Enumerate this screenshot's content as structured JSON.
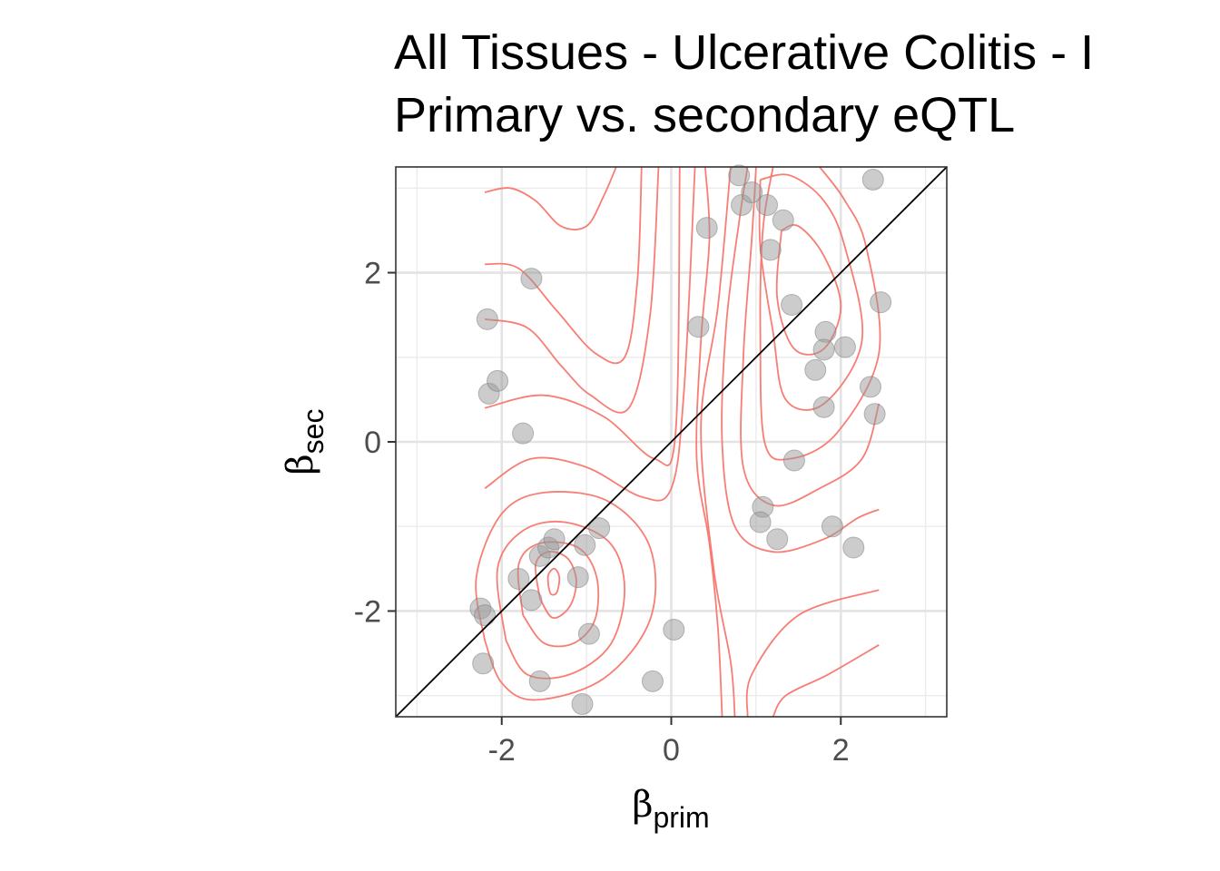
{
  "chart_data": {
    "type": "scatter",
    "title": [
      "All Tissues - Ulcerative Colitis - I",
      "Primary vs. secondary eQTL"
    ],
    "xlabel": {
      "symbol": "β",
      "sub": "prim"
    },
    "ylabel": {
      "symbol": "β",
      "sub": "sec"
    },
    "xlim": [
      -3.25,
      3.25
    ],
    "ylim": [
      -3.25,
      3.25
    ],
    "x_ticks": [
      -2,
      0,
      2
    ],
    "y_ticks": [
      -2,
      0,
      2
    ],
    "x_tick_labels": [
      "-2",
      "0",
      "2"
    ],
    "y_tick_labels": [
      "-2",
      "0",
      "2"
    ],
    "grid": true,
    "reference_line": "y = x",
    "points": {
      "color": "#999999",
      "x": [
        -2.17,
        -2.15,
        -2.05,
        -1.75,
        -1.65,
        -2.25,
        -2.2,
        -2.22,
        -1.8,
        -1.65,
        -1.55,
        -1.45,
        -1.38,
        -1.02,
        -0.85,
        -1.1,
        -0.97,
        -1.55,
        -1.05,
        -0.22,
        0.03,
        0.32,
        0.42,
        0.8,
        0.83,
        0.95,
        1.13,
        1.17,
        1.32,
        1.42,
        1.82,
        1.8,
        2.05,
        1.7,
        1.8,
        2.35,
        2.4,
        2.47,
        2.38,
        1.45,
        1.08,
        1.05,
        1.25,
        1.9,
        2.15
      ],
      "y": [
        1.45,
        0.57,
        0.72,
        0.1,
        1.93,
        -1.97,
        -2.05,
        -2.62,
        -1.62,
        -1.87,
        -1.35,
        -1.25,
        -1.15,
        -1.22,
        -1.02,
        -1.6,
        -2.27,
        -2.83,
        -3.1,
        -2.83,
        -2.22,
        1.36,
        2.53,
        3.15,
        2.8,
        2.95,
        2.8,
        2.27,
        2.62,
        1.62,
        1.3,
        1.09,
        1.12,
        0.85,
        0.41,
        0.65,
        0.33,
        1.65,
        3.1,
        -0.22,
        -0.77,
        -0.95,
        -1.15,
        -1.0,
        -1.25
      ]
    },
    "density_contours": {
      "color": "#f8766d",
      "lines": [
        [
          [
            -2.2,
            2.95
          ],
          [
            -1.9,
            3.0
          ],
          [
            -1.6,
            2.85
          ],
          [
            -1.3,
            2.55
          ],
          [
            -1.0,
            2.55
          ],
          [
            -0.8,
            2.9
          ],
          [
            -0.65,
            3.25
          ]
        ],
        [
          [
            -2.2,
            2.1
          ],
          [
            -1.8,
            2.05
          ],
          [
            -1.35,
            1.55
          ],
          [
            -0.9,
            1.05
          ],
          [
            -0.55,
            1.0
          ],
          [
            -0.4,
            1.9
          ],
          [
            -0.35,
            3.25
          ]
        ],
        [
          [
            -2.2,
            1.45
          ],
          [
            -1.7,
            1.35
          ],
          [
            -1.3,
            0.9
          ],
          [
            -0.95,
            0.55
          ],
          [
            -0.5,
            0.4
          ],
          [
            -0.25,
            1.5
          ],
          [
            -0.15,
            3.25
          ]
        ],
        [
          [
            -2.2,
            0.4
          ],
          [
            -1.5,
            0.55
          ],
          [
            -0.8,
            0.3
          ],
          [
            -0.2,
            -0.2
          ],
          [
            0.05,
            0.1
          ],
          [
            0.1,
            3.25
          ]
        ],
        [
          [
            -2.2,
            -0.55
          ],
          [
            -1.65,
            -0.2
          ],
          [
            -1.0,
            -0.3
          ],
          [
            -0.35,
            -0.65
          ],
          [
            0.0,
            -0.55
          ],
          [
            0.15,
            0.6
          ],
          [
            0.28,
            3.25
          ]
        ],
        [
          [
            -2.2,
            -2.35
          ],
          [
            -2.3,
            -1.6
          ],
          [
            -2.0,
            -0.85
          ],
          [
            -1.5,
            -0.6
          ],
          [
            -0.75,
            -0.7
          ],
          [
            -0.25,
            -1.25
          ],
          [
            -0.25,
            -2.1
          ],
          [
            -0.8,
            -2.8
          ],
          [
            -1.6,
            -3.05
          ],
          [
            -2.0,
            -2.85
          ],
          [
            -2.2,
            -2.35
          ]
        ],
        [
          [
            -1.95,
            -2.35
          ],
          [
            -2.05,
            -1.5
          ],
          [
            -1.75,
            -1.05
          ],
          [
            -1.25,
            -0.95
          ],
          [
            -0.72,
            -1.2
          ],
          [
            -0.55,
            -1.75
          ],
          [
            -0.72,
            -2.4
          ],
          [
            -1.2,
            -2.75
          ],
          [
            -1.7,
            -2.75
          ],
          [
            -1.95,
            -2.35
          ]
        ],
        [
          [
            -1.75,
            -2.05
          ],
          [
            -1.8,
            -1.45
          ],
          [
            -1.55,
            -1.2
          ],
          [
            -1.1,
            -1.25
          ],
          [
            -0.88,
            -1.6
          ],
          [
            -0.9,
            -2.1
          ],
          [
            -1.15,
            -2.38
          ],
          [
            -1.5,
            -2.38
          ],
          [
            -1.75,
            -2.05
          ]
        ],
        [
          [
            -1.55,
            -1.85
          ],
          [
            -1.6,
            -1.45
          ],
          [
            -1.45,
            -1.3
          ],
          [
            -1.22,
            -1.38
          ],
          [
            -1.12,
            -1.65
          ],
          [
            -1.2,
            -1.95
          ],
          [
            -1.4,
            -2.08
          ],
          [
            -1.55,
            -1.85
          ]
        ],
        [
          [
            -1.45,
            -1.7
          ],
          [
            -1.45,
            -1.57
          ],
          [
            -1.38,
            -1.5
          ],
          [
            -1.32,
            -1.6
          ],
          [
            -1.35,
            -1.78
          ],
          [
            -1.42,
            -1.8
          ],
          [
            -1.45,
            -1.7
          ]
        ],
        [
          [
            0.4,
            3.25
          ],
          [
            0.45,
            2.4
          ],
          [
            0.35,
            1.2
          ],
          [
            0.3,
            -0.2
          ],
          [
            0.45,
            -1.2
          ],
          [
            0.55,
            -2.2
          ],
          [
            0.6,
            -3.25
          ]
        ],
        [
          [
            0.75,
            -3.25
          ],
          [
            0.7,
            -2.6
          ],
          [
            0.5,
            -1.5
          ],
          [
            0.35,
            0.2
          ],
          [
            0.55,
            1.6
          ],
          [
            0.7,
            3.25
          ]
        ],
        [
          [
            0.9,
            -3.25
          ],
          [
            0.95,
            -2.75
          ],
          [
            1.5,
            -2.05
          ],
          [
            2.45,
            -1.75
          ]
        ],
        [
          [
            1.2,
            -3.25
          ],
          [
            1.35,
            -3.0
          ],
          [
            1.85,
            -2.75
          ],
          [
            2.45,
            -2.4
          ]
        ],
        [
          [
            0.9,
            3.25
          ],
          [
            0.8,
            2.6
          ],
          [
            0.65,
            1.4
          ],
          [
            0.6,
            0.0
          ],
          [
            0.75,
            -1.0
          ],
          [
            1.2,
            -1.3
          ],
          [
            1.8,
            -1.15
          ],
          [
            2.2,
            -0.9
          ],
          [
            2.45,
            -0.8
          ]
        ],
        [
          [
            1.0,
            3.25
          ],
          [
            0.95,
            2.4
          ],
          [
            0.85,
            1.0
          ],
          [
            0.85,
            -0.3
          ],
          [
            1.2,
            -0.75
          ],
          [
            1.75,
            -0.55
          ],
          [
            2.25,
            -0.2
          ],
          [
            2.45,
            0.45
          ]
        ],
        [
          [
            1.2,
            3.25
          ],
          [
            1.08,
            2.5
          ],
          [
            1.05,
            1.3
          ],
          [
            1.1,
            0.0
          ],
          [
            1.4,
            -0.2
          ],
          [
            1.95,
            0.1
          ],
          [
            2.45,
            1.05
          ],
          [
            2.3,
            2.3
          ],
          [
            2.05,
            2.85
          ],
          [
            1.75,
            3.25
          ]
        ],
        [
          [
            1.05,
            3.1
          ],
          [
            1.05,
            2.3
          ],
          [
            1.2,
            1.3
          ],
          [
            1.35,
            0.5
          ],
          [
            1.8,
            0.45
          ],
          [
            2.25,
            1.2
          ],
          [
            2.05,
            2.3
          ],
          [
            1.8,
            2.85
          ],
          [
            1.4,
            3.15
          ],
          [
            1.05,
            3.1
          ]
        ],
        [
          [
            1.3,
            2.5
          ],
          [
            1.25,
            1.7
          ],
          [
            1.45,
            1.1
          ],
          [
            1.8,
            1.1
          ],
          [
            2.0,
            1.6
          ],
          [
            1.8,
            2.2
          ],
          [
            1.5,
            2.55
          ],
          [
            1.3,
            2.5
          ]
        ]
      ]
    }
  }
}
